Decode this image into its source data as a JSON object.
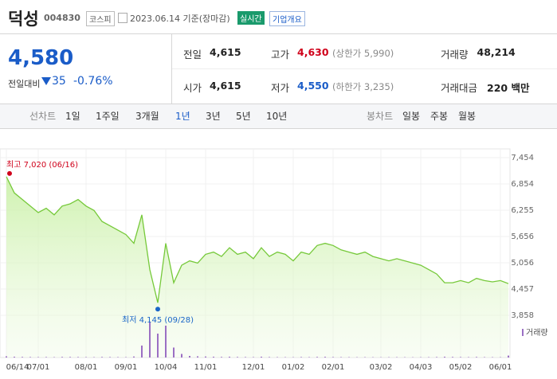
{
  "header": {
    "name": "덕성",
    "code": "004830",
    "market": "코스피",
    "date": "2023.06.14 기준(장마감)",
    "realtime": "실시간",
    "overview": "기업개요"
  },
  "quote": {
    "price": "4,580",
    "change_label": "전일대비",
    "change": "35",
    "change_rate": "-0.76%"
  },
  "table": {
    "rows": [
      [
        {
          "label": "전일",
          "value": "4,615"
        },
        {
          "label": "고가",
          "value": "4,630",
          "note": "(상한가 5,990)"
        },
        {
          "label": "거래량",
          "value": "48,214"
        }
      ],
      [
        {
          "label": "시가",
          "value": "4,615"
        },
        {
          "label": "저가",
          "value": "4,550",
          "note": "(하한가 3,235)"
        },
        {
          "label": "거래대금",
          "value": "220 백만"
        }
      ]
    ]
  },
  "tabs": {
    "line_title": "선차트",
    "line": [
      "1일",
      "1주일",
      "3개월",
      "1년",
      "3년",
      "5년",
      "10년"
    ],
    "candle_title": "봉차트",
    "candle": [
      "일봉",
      "주봉",
      "월봉"
    ]
  },
  "chart_data": {
    "type": "line",
    "categories": [
      "06/14",
      null,
      null,
      null,
      "07/01",
      null,
      null,
      null,
      null,
      null,
      "08/01",
      null,
      null,
      null,
      null,
      "09/01",
      null,
      null,
      null,
      null,
      "10/04",
      null,
      null,
      null,
      null,
      "11/01",
      null,
      null,
      null,
      null,
      null,
      "12/01",
      null,
      null,
      null,
      null,
      "01/02",
      null,
      null,
      null,
      null,
      "02/01",
      null,
      null,
      null,
      null,
      null,
      "03/02",
      null,
      null,
      null,
      null,
      "04/03",
      null,
      null,
      null,
      null,
      "05/02",
      null,
      null,
      null,
      null,
      "06/01",
      null
    ],
    "series": [
      {
        "name": "종가",
        "color": "#76c93a",
        "values": [
          7020,
          6650,
          6500,
          6350,
          6200,
          6300,
          6150,
          6350,
          6400,
          6500,
          6350,
          6250,
          6000,
          5900,
          5800,
          5700,
          5500,
          6150,
          4900,
          4145,
          5500,
          4600,
          5000,
          5100,
          5050,
          5250,
          5300,
          5200,
          5400,
          5250,
          5300,
          5150,
          5400,
          5200,
          5300,
          5250,
          5100,
          5300,
          5250,
          5450,
          5500,
          5450,
          5350,
          5300,
          5250,
          5300,
          5200,
          5150,
          5100,
          5150,
          5100,
          5050,
          5000,
          4900,
          4800,
          4600,
          4600,
          4650,
          4600,
          4700,
          4650,
          4620,
          4650,
          4580
        ]
      }
    ],
    "volume": {
      "name": "거래량",
      "color": "#9b6fc4",
      "values": [
        30000,
        20000,
        15000,
        12000,
        10000,
        12000,
        9000,
        15000,
        14000,
        12000,
        10000,
        9000,
        14000,
        12000,
        10000,
        9000,
        25000,
        300000,
        900000,
        600000,
        800000,
        250000,
        90000,
        40000,
        30000,
        25000,
        20000,
        15000,
        20000,
        14000,
        12000,
        10000,
        20000,
        12000,
        10000,
        9000,
        8000,
        12000,
        10000,
        15000,
        18000,
        12000,
        10000,
        9000,
        8000,
        9000,
        8000,
        7000,
        8000,
        9000,
        8000,
        7000,
        8000,
        9000,
        12000,
        20000,
        15000,
        12000,
        10000,
        14000,
        10000,
        9000,
        8000,
        48214
      ],
      "ylim": [
        0,
        1000000
      ]
    },
    "ylim": [
      3858,
      7454
    ],
    "yticks": [
      {
        "value": 3858,
        "label": "3,858"
      },
      {
        "value": 4457,
        "label": "4,457"
      },
      {
        "value": 5056,
        "label": "5,056"
      },
      {
        "value": 5656,
        "label": "5,656"
      },
      {
        "value": 6255,
        "label": "6,255"
      },
      {
        "value": 6854,
        "label": "6,854"
      },
      {
        "value": 7454,
        "label": "7,454"
      }
    ],
    "grid": true,
    "annotations": [
      {
        "label": "최고 7,020 (06/16)",
        "value": 7020,
        "color": "#d0021b"
      },
      {
        "label": "최저 4,145 (09/28)",
        "value": 4145,
        "color": "#1a66c8"
      }
    ]
  }
}
